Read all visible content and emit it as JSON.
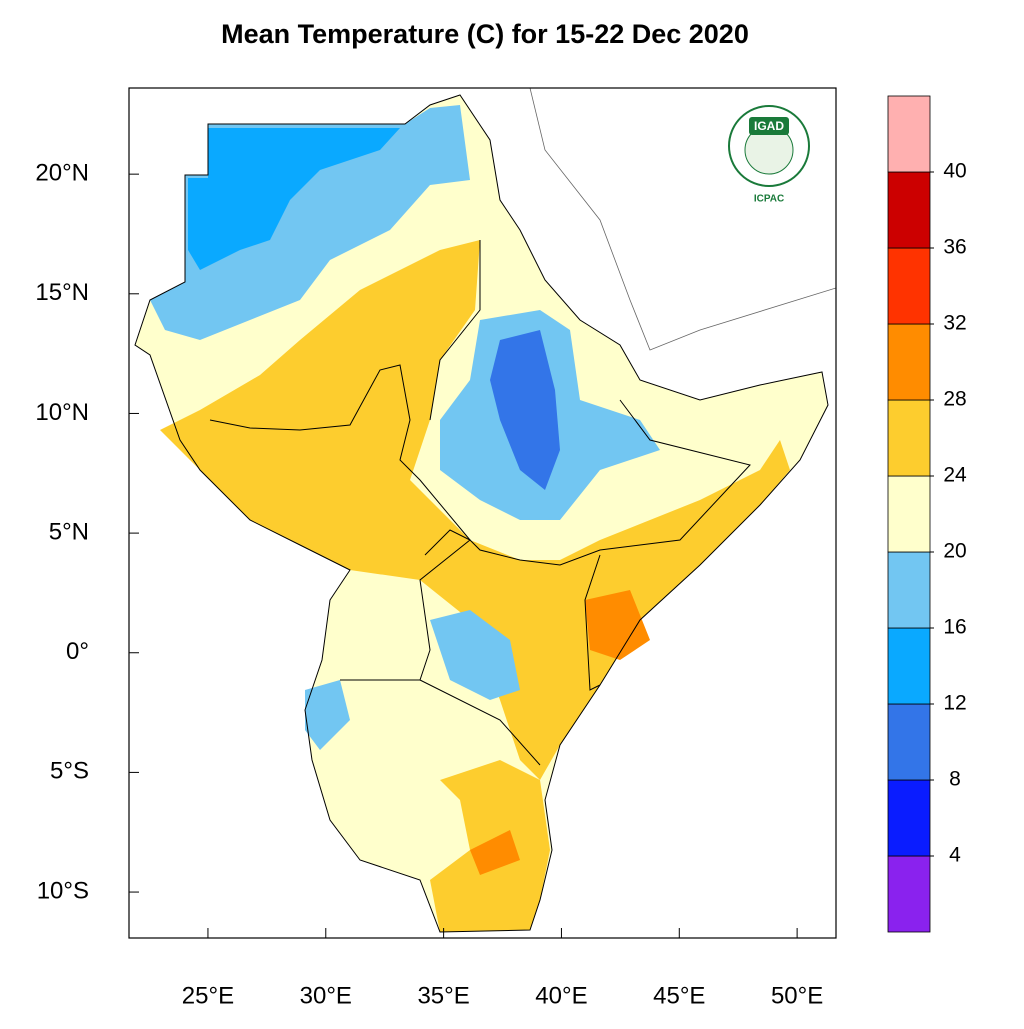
{
  "title": "Mean Temperature (C) for 15-22 Dec 2020",
  "map": {
    "lonlim": [
      21.65,
      51.65
    ],
    "latlim": [
      -11.92,
      23.6
    ],
    "lon_ticks": [
      {
        "value": 25,
        "label": "25°E"
      },
      {
        "value": 30,
        "label": "30°E"
      },
      {
        "value": 35,
        "label": "35°E"
      },
      {
        "value": 40,
        "label": "40°E"
      },
      {
        "value": 45,
        "label": "45°E"
      },
      {
        "value": 50,
        "label": "50°E"
      }
    ],
    "lat_ticks": [
      {
        "value": 20,
        "label": "20°N"
      },
      {
        "value": 15,
        "label": "15°N"
      },
      {
        "value": 10,
        "label": "10°N"
      },
      {
        "value": 5,
        "label": "5°N"
      },
      {
        "value": 0,
        "label": "0°"
      },
      {
        "value": -5,
        "label": "5°S"
      },
      {
        "value": -10,
        "label": "10°S"
      }
    ]
  },
  "colorbar": {
    "levels": [
      4,
      8,
      12,
      16,
      20,
      24,
      28,
      32,
      36,
      40
    ],
    "colors": [
      "#8a22ee",
      "#0a1cff",
      "#3375e8",
      "#0aa9ff",
      "#72c6f2",
      "#ffffcc",
      "#fdcd2e",
      "#ff8c00",
      "#ff3300",
      "#cc0000",
      "#ffb0b0"
    ]
  },
  "logo": {
    "name": "IGAD",
    "org": "ICPAC"
  }
}
